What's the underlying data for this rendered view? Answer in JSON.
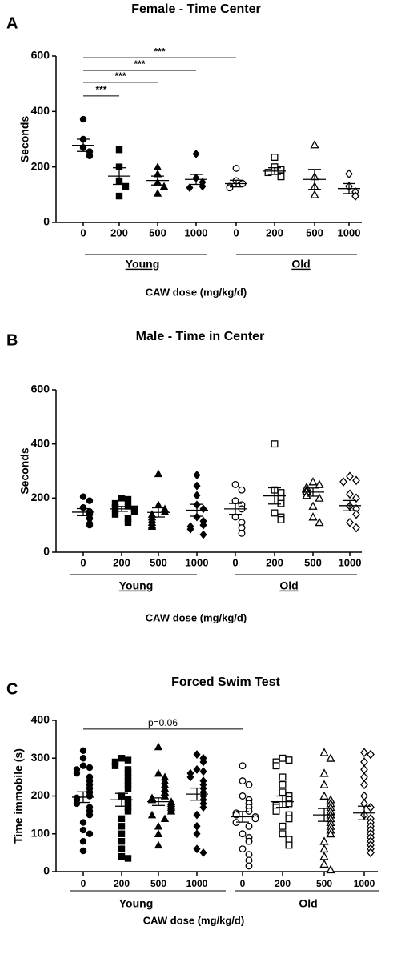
{
  "chart_data": [
    {
      "type": "dot",
      "panel": "A",
      "title": "Female - Time Center",
      "ylabel": "Seconds",
      "xlabel": "CAW dose (mg/kg/d)",
      "categories": [
        "0",
        "200",
        "500",
        "1000",
        "0",
        "200",
        "500",
        "1000"
      ],
      "groups": [
        "Young",
        "Old"
      ],
      "markers": [
        "circle-filled",
        "square-filled",
        "triangle-filled",
        "diamond-filled",
        "circle-open",
        "square-open",
        "triangle-open",
        "diamond-open"
      ],
      "color": "#000000",
      "points": [
        [
          372,
          300,
          270,
          255,
          240
        ],
        [
          262,
          200,
          150,
          130,
          95
        ],
        [
          200,
          175,
          145,
          130,
          105
        ],
        [
          247,
          160,
          145,
          130,
          125
        ],
        [
          195,
          150,
          140,
          130,
          125
        ],
        [
          235,
          200,
          190,
          180,
          165
        ],
        [
          280,
          165,
          130,
          100
        ],
        [
          175,
          130,
          110,
          95
        ]
      ],
      "means": [
        278,
        167,
        151,
        155,
        140,
        185,
        155,
        122
      ],
      "sems": [
        22,
        30,
        16,
        18,
        12,
        12,
        36,
        18
      ],
      "annotations": [
        {
          "label": "***",
          "from": 0,
          "to": 4,
          "y": 594
        },
        {
          "label": "***",
          "from": 0,
          "to": 3,
          "y": 548
        },
        {
          "label": "***",
          "from": 0,
          "to": 2,
          "y": 505
        },
        {
          "label": "***",
          "from": 0,
          "to": 1,
          "y": 456
        }
      ],
      "ylim": [
        0,
        600
      ],
      "yticks": [
        0,
        200,
        400,
        600
      ]
    },
    {
      "type": "dot",
      "panel": "B",
      "title": "Male - Time in  Center",
      "ylabel": "Seconds",
      "xlabel": "CAW dose (mg/kg/d)",
      "categories": [
        "0",
        "200",
        "500",
        "1000",
        "0",
        "200",
        "500",
        "1000"
      ],
      "groups": [
        "Young",
        "Old"
      ],
      "markers": [
        "circle-filled",
        "square-filled",
        "triangle-filled",
        "diamond-filled",
        "circle-open",
        "square-open",
        "triangle-open",
        "diamond-open"
      ],
      "color": "#000000",
      "points": [
        [
          205,
          190,
          165,
          150,
          140,
          125,
          105,
          100
        ],
        [
          200,
          195,
          180,
          170,
          165,
          160,
          150,
          140,
          125,
          110
        ],
        [
          290,
          175,
          160,
          150,
          140,
          130,
          120,
          110,
          100,
          95
        ],
        [
          285,
          245,
          210,
          175,
          160,
          130,
          115,
          100,
          95,
          85,
          65
        ],
        [
          250,
          230,
          190,
          175,
          160,
          130,
          110,
          90,
          70
        ],
        [
          400,
          230,
          220,
          200,
          180,
          145,
          130,
          120
        ],
        [
          260,
          250,
          240,
          230,
          225,
          210,
          200,
          170,
          130,
          110
        ],
        [
          280,
          265,
          260,
          215,
          200,
          170,
          160,
          140,
          110,
          90
        ]
      ],
      "means": [
        148,
        160,
        147,
        155,
        160,
        208,
        222,
        172
      ],
      "sems": [
        13,
        9,
        17,
        22,
        20,
        30,
        15,
        19
      ],
      "annotations": [],
      "ylim": [
        0,
        600
      ],
      "yticks": [
        0,
        200,
        400,
        600
      ]
    },
    {
      "type": "dot",
      "panel": "C",
      "title": "Forced Swim Test",
      "ylabel": "Time immobile (s)",
      "xlabel": "CAW dose (mg/kg/d)",
      "categories": [
        "0",
        "200",
        "500",
        "1000",
        "0",
        "200",
        "500",
        "1000"
      ],
      "groups": [
        "Young",
        "Old"
      ],
      "markers": [
        "circle-filled",
        "square-filled",
        "triangle-filled",
        "diamond-filled",
        "circle-open",
        "square-open",
        "triangle-open",
        "diamond-open"
      ],
      "color": "#000000",
      "points": [
        [
          320,
          300,
          280,
          275,
          270,
          260,
          250,
          240,
          230,
          220,
          210,
          200,
          195,
          190,
          180,
          170,
          160,
          150,
          130,
          110,
          100,
          80,
          55
        ],
        [
          300,
          295,
          290,
          280,
          270,
          260,
          250,
          240,
          230,
          220,
          200,
          190,
          180,
          170,
          160,
          140,
          120,
          100,
          80,
          60,
          40,
          35
        ],
        [
          330,
          260,
          250,
          240,
          230,
          220,
          210,
          200,
          195,
          190,
          185,
          180,
          175,
          170,
          165,
          160,
          150,
          140,
          120,
          100,
          70
        ],
        [
          310,
          300,
          290,
          270,
          265,
          260,
          250,
          240,
          230,
          220,
          210,
          200,
          190,
          180,
          170,
          150,
          120,
          100,
          60,
          50
        ],
        [
          280,
          240,
          230,
          200,
          190,
          180,
          170,
          160,
          155,
          150,
          145,
          140,
          130,
          120,
          100,
          90,
          80,
          60,
          45,
          30,
          15
        ],
        [
          300,
          295,
          290,
          280,
          250,
          230,
          210,
          200,
          190,
          180,
          175,
          170,
          160,
          150,
          140,
          120,
          100,
          85,
          70
        ],
        [
          315,
          300,
          260,
          230,
          200,
          190,
          180,
          170,
          160,
          150,
          140,
          130,
          120,
          110,
          100,
          80,
          60,
          40,
          20,
          5
        ],
        [
          315,
          310,
          290,
          270,
          250,
          230,
          200,
          180,
          170,
          150,
          140,
          130,
          120,
          110,
          100,
          90,
          80,
          70,
          60,
          50
        ]
      ],
      "means": [
        197,
        190,
        185,
        205,
        145,
        185,
        150,
        155
      ],
      "sems": [
        14,
        17,
        10,
        16,
        14,
        15,
        17,
        18
      ],
      "annotations": [
        {
          "label": "p=0.06",
          "from": 0,
          "to": 4,
          "y": 377
        }
      ],
      "ylim": [
        0,
        400
      ],
      "yticks": [
        0,
        100,
        200,
        300,
        400
      ]
    }
  ]
}
